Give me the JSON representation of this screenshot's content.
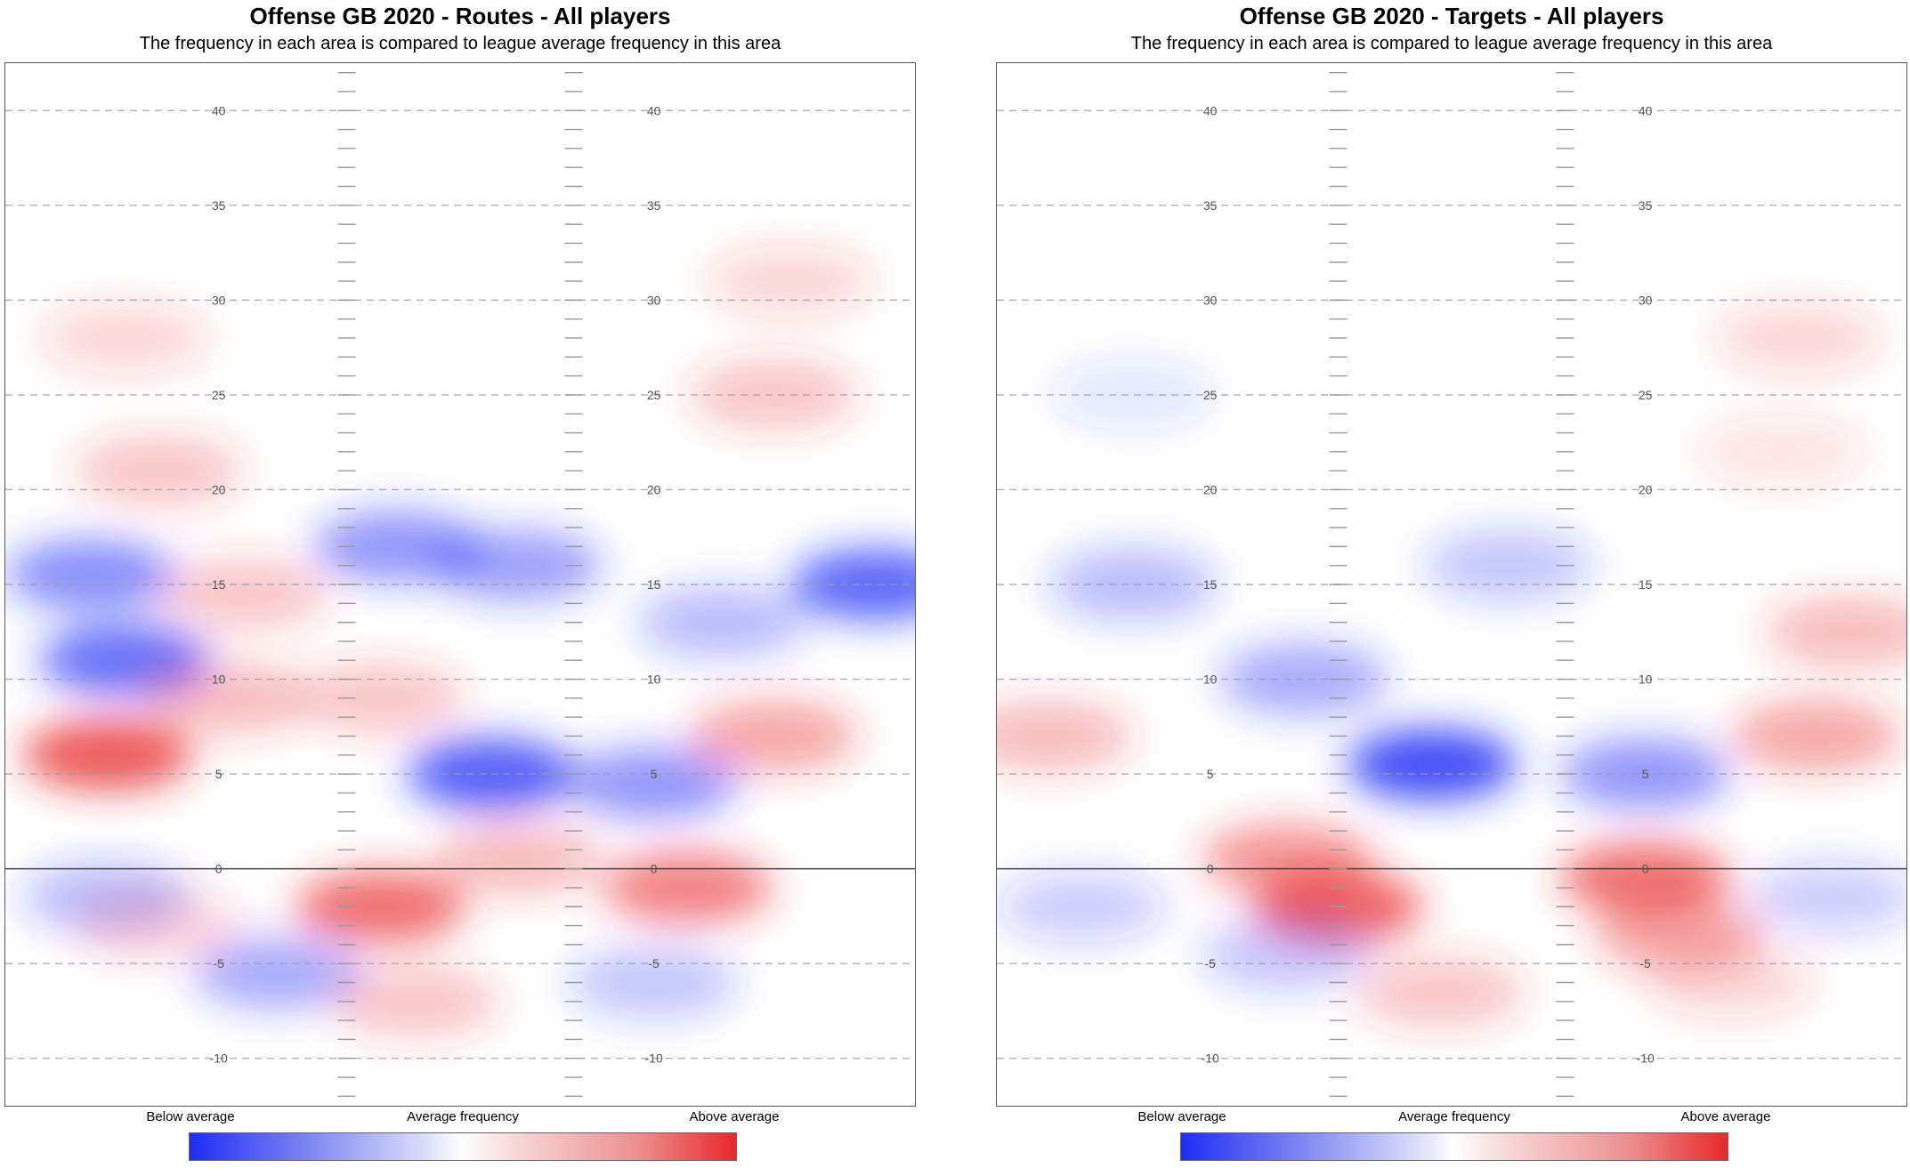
{
  "panels": [
    {
      "title": "Offense GB 2020 - Routes - All players",
      "subtitle": "The frequency in each area is compared to league average frequency in this area",
      "legend": {
        "low": "Below average",
        "mid": "Average frequency",
        "high": "Above average"
      }
    },
    {
      "title": "Offense GB 2020 - Targets - All players",
      "subtitle": "The frequency in each area is compared to league average frequency in this area",
      "legend": {
        "low": "Below average",
        "mid": "Average frequency",
        "high": "Above average"
      }
    }
  ],
  "colors": {
    "below": "#1f2df5",
    "average": "#ffffff",
    "above": "#e8282a",
    "line_of_scrimmage": "#444444",
    "gridline": "#9a9ab0",
    "hash": "#999999"
  },
  "chart_data": [
    {
      "type": "heatmap",
      "title": "Offense GB 2020 - Routes - All players",
      "subtitle": "The frequency in each area is compared to league average frequency in this area",
      "y_tick_labels": [
        "40",
        "35",
        "30",
        "25",
        "20",
        "15",
        "10",
        "5",
        "0",
        "-5",
        "-10"
      ],
      "y_ticks": [
        40,
        35,
        30,
        25,
        20,
        15,
        10,
        5,
        0,
        -5,
        -10
      ],
      "ylim": [
        -12.5,
        42.5
      ],
      "xlim": [
        0,
        53.3
      ],
      "line_of_scrimmage": 0,
      "hash_x": [
        20,
        33.3
      ],
      "value_scale": "frequency vs league average (-1 below, 0 average, 1 above)",
      "blobs": [
        {
          "x": 7,
          "y": 28,
          "value": 0.2
        },
        {
          "x": 9,
          "y": 21,
          "value": 0.3
        },
        {
          "x": 45,
          "y": 25,
          "value": 0.3
        },
        {
          "x": 46,
          "y": 31,
          "value": 0.2
        },
        {
          "x": 5,
          "y": 15.5,
          "value": -0.6
        },
        {
          "x": 7,
          "y": 11,
          "value": -0.75
        },
        {
          "x": 14,
          "y": 14.5,
          "value": 0.3
        },
        {
          "x": 23,
          "y": 17,
          "value": -0.55
        },
        {
          "x": 30,
          "y": 16,
          "value": -0.5
        },
        {
          "x": 51,
          "y": 15,
          "value": -0.8
        },
        {
          "x": 42,
          "y": 13,
          "value": -0.35
        },
        {
          "x": 6,
          "y": 6,
          "value": 0.85
        },
        {
          "x": 13,
          "y": 9,
          "value": 0.35
        },
        {
          "x": 22,
          "y": 9,
          "value": 0.3
        },
        {
          "x": 28.5,
          "y": 5,
          "value": -0.85
        },
        {
          "x": 38,
          "y": 4.5,
          "value": -0.55
        },
        {
          "x": 45,
          "y": 7,
          "value": 0.45
        },
        {
          "x": 22,
          "y": -2,
          "value": 0.75
        },
        {
          "x": 40,
          "y": -1,
          "value": 0.65
        },
        {
          "x": 30,
          "y": 0.5,
          "value": 0.35
        },
        {
          "x": 6,
          "y": -1.5,
          "value": -0.35
        },
        {
          "x": 16,
          "y": -5.5,
          "value": -0.45
        },
        {
          "x": 24,
          "y": -7,
          "value": 0.3
        },
        {
          "x": 38,
          "y": -6,
          "value": -0.3
        },
        {
          "x": 9,
          "y": -3,
          "value": 0.2
        }
      ]
    },
    {
      "type": "heatmap",
      "title": "Offense GB 2020 - Targets - All players",
      "subtitle": "The frequency in each area is compared to league average frequency in this area",
      "y_tick_labels": [
        "40",
        "35",
        "30",
        "25",
        "20",
        "15",
        "10",
        "5",
        "0",
        "-5",
        "-10"
      ],
      "y_ticks": [
        40,
        35,
        30,
        25,
        20,
        15,
        10,
        5,
        0,
        -5,
        -10
      ],
      "ylim": [
        -12.5,
        42.5
      ],
      "xlim": [
        0,
        53.3
      ],
      "line_of_scrimmage": 0,
      "hash_x": [
        20,
        33.3
      ],
      "value_scale": "frequency vs league average (-1 below, 0 average, 1 above)",
      "blobs": [
        {
          "x": 47,
          "y": 28,
          "value": 0.2
        },
        {
          "x": 46,
          "y": 22,
          "value": 0.15
        },
        {
          "x": 8,
          "y": 25,
          "value": -0.12
        },
        {
          "x": 8,
          "y": 15,
          "value": -0.35
        },
        {
          "x": 18,
          "y": 10,
          "value": -0.45
        },
        {
          "x": 25.5,
          "y": 5.5,
          "value": -0.95
        },
        {
          "x": 38,
          "y": 5,
          "value": -0.55
        },
        {
          "x": 30,
          "y": 16,
          "value": -0.3
        },
        {
          "x": 50,
          "y": 12.5,
          "value": 0.35
        },
        {
          "x": 48,
          "y": 7,
          "value": 0.45
        },
        {
          "x": 3,
          "y": 7,
          "value": 0.35
        },
        {
          "x": 17,
          "y": 0.5,
          "value": 0.55
        },
        {
          "x": 20,
          "y": -2,
          "value": 0.8
        },
        {
          "x": 38,
          "y": -0.5,
          "value": 0.75
        },
        {
          "x": 40,
          "y": -3.5,
          "value": 0.45
        },
        {
          "x": 17,
          "y": -4.5,
          "value": -0.3
        },
        {
          "x": 26,
          "y": -6.5,
          "value": 0.3
        },
        {
          "x": 43,
          "y": -6,
          "value": 0.2
        },
        {
          "x": 5,
          "y": -2,
          "value": -0.25
        },
        {
          "x": 49,
          "y": -1.5,
          "value": -0.25
        }
      ]
    }
  ]
}
